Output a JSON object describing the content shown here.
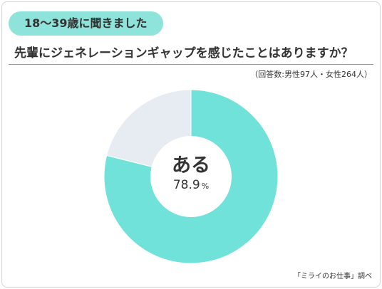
{
  "header": {
    "badge": "18〜39歳に聞きました",
    "question": "先輩にジェネレーションギャップを感じたことはありますか？",
    "sample_note": "（回答数:男性97人・女性264人）"
  },
  "footer": {
    "source": "「ミライのお仕事」調べ"
  },
  "colors": {
    "accent": "#70e2da",
    "remainder": "#e6ecf2",
    "badge": "#8ee3da"
  },
  "chart_data": {
    "type": "pie",
    "style": "donut",
    "slices": [
      {
        "label": "ある",
        "value": 78.9,
        "unit": "%",
        "color": "#70e2da"
      },
      {
        "label": "",
        "value": 21.1,
        "color": "#e6ecf2"
      }
    ],
    "center_label": "ある",
    "center_value": "78.9",
    "center_unit": "%"
  }
}
